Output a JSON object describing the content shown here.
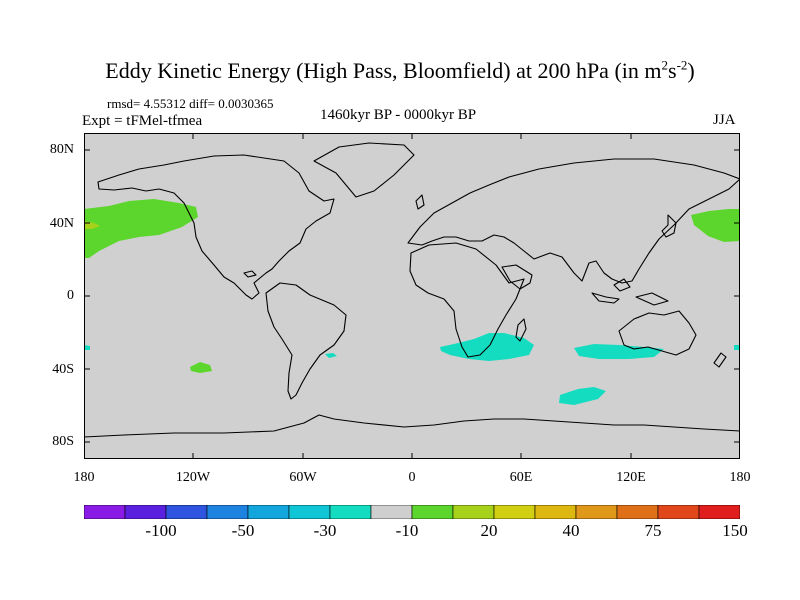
{
  "title_main": "Eddy Kinetic Energy (High Pass, Bloomfield) at 200 hPa (in m",
  "title_sup1": "2",
  "title_s": "s",
  "title_sup2": "-2",
  "title_end": ")",
  "stats": "rmsd= 4.55312 diff= 0.0030365",
  "expt": "Expt = tFMel-tfmea",
  "period": "1460kyr BP - 0000kyr BP",
  "season": "JJA",
  "lat_labels": [
    "80N",
    "40N",
    "0",
    "40S",
    "80S"
  ],
  "lon_labels": [
    "180",
    "120W",
    "60W",
    "0",
    "60E",
    "120E",
    "180"
  ],
  "colorbar": {
    "colors": [
      "#8a1ae6",
      "#5a20e0",
      "#2e54e0",
      "#1e82e0",
      "#12a6dc",
      "#10c6d6",
      "#14dcc0",
      "#cfcfcf",
      "#5cd62c",
      "#a8d21a",
      "#d2ce12",
      "#dcb810",
      "#e0981a",
      "#e07018",
      "#e0481c",
      "#e01e1e"
    ],
    "labels": [
      "-100",
      "-50",
      "-30",
      "-10",
      "20",
      "40",
      "75",
      "150"
    ]
  },
  "map_colors": {
    "background": "#d0d0d0",
    "positive": "#5cd62c",
    "negative": "#14dcc0",
    "strong_positive": "#a8d21a"
  }
}
